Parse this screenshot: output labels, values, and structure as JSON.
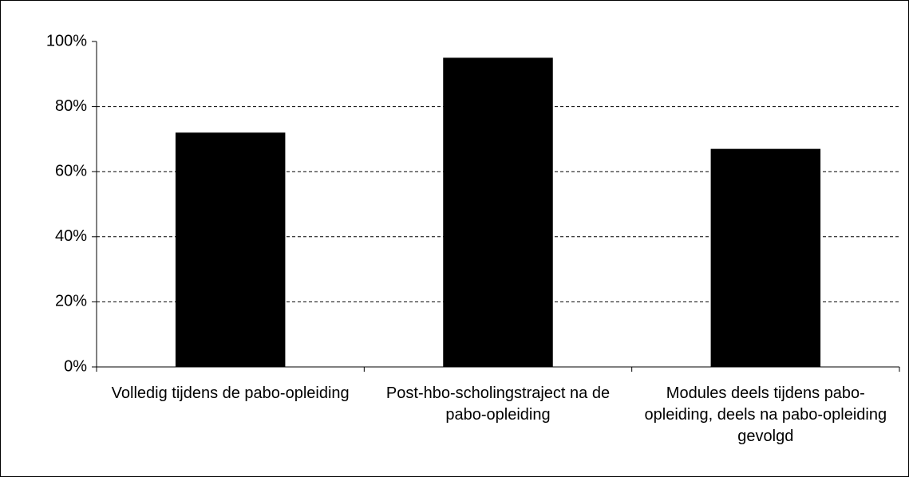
{
  "chart_data": {
    "type": "bar",
    "categories": [
      "Volledig tijdens de pabo-opleiding",
      "Post-hbo-scholingstraject na de pabo-opleiding",
      "Modules deels tijdens pabo-opleiding, deels na pabo-opleiding gevolgd"
    ],
    "values": [
      72,
      95,
      67
    ],
    "color": "#000000",
    "ylim": [
      0,
      100
    ],
    "yticks": [
      {
        "value": 0,
        "label": "0%"
      },
      {
        "value": 20,
        "label": "20%"
      },
      {
        "value": 40,
        "label": "40%"
      },
      {
        "value": 60,
        "label": "60%"
      },
      {
        "value": 80,
        "label": "80%"
      },
      {
        "value": 100,
        "label": "100%"
      }
    ],
    "grid": true
  }
}
